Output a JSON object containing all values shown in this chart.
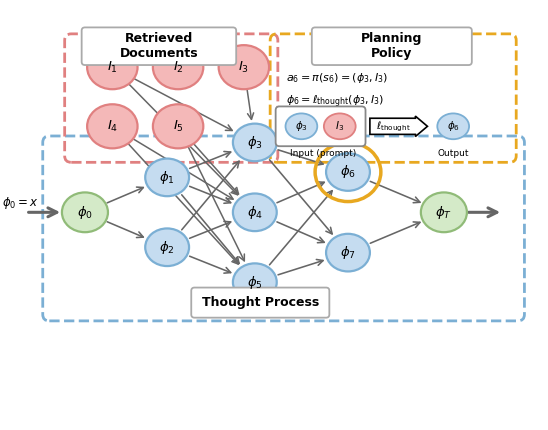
{
  "fig_width": 5.48,
  "fig_height": 4.3,
  "dpi": 100,
  "node_blue_face": "#C5DCF0",
  "node_blue_edge": "#7BAFD4",
  "node_red_face": "#F4B8B8",
  "node_red_edge": "#E08080",
  "node_green_face": "#D4EAC8",
  "node_green_edge": "#90BB78",
  "node_yellow_edge": "#E8A820",
  "arrow_color": "#666666",
  "box_red_edge": "#E08080",
  "box_blue_edge": "#7BAFD4",
  "box_yellow_edge": "#E8A820",
  "box_label_edge": "#aaaaaa",
  "thought_process_label": "Thought Process",
  "retrieved_docs_label": "Retrieved\nDocuments",
  "planning_policy_label": "Planning\nPolicy",
  "eq1": "$a_6 = \\pi(s_6) = (\\phi_3, I_3)$",
  "eq2": "$\\phi_6 = \\ell_{\\mathrm{thought}}(\\phi_3, I_3)$",
  "input_label": "Input (prompt)",
  "output_label": "Output",
  "ell_thought_label": "$\\ell_{\\mathrm{thought}}$"
}
